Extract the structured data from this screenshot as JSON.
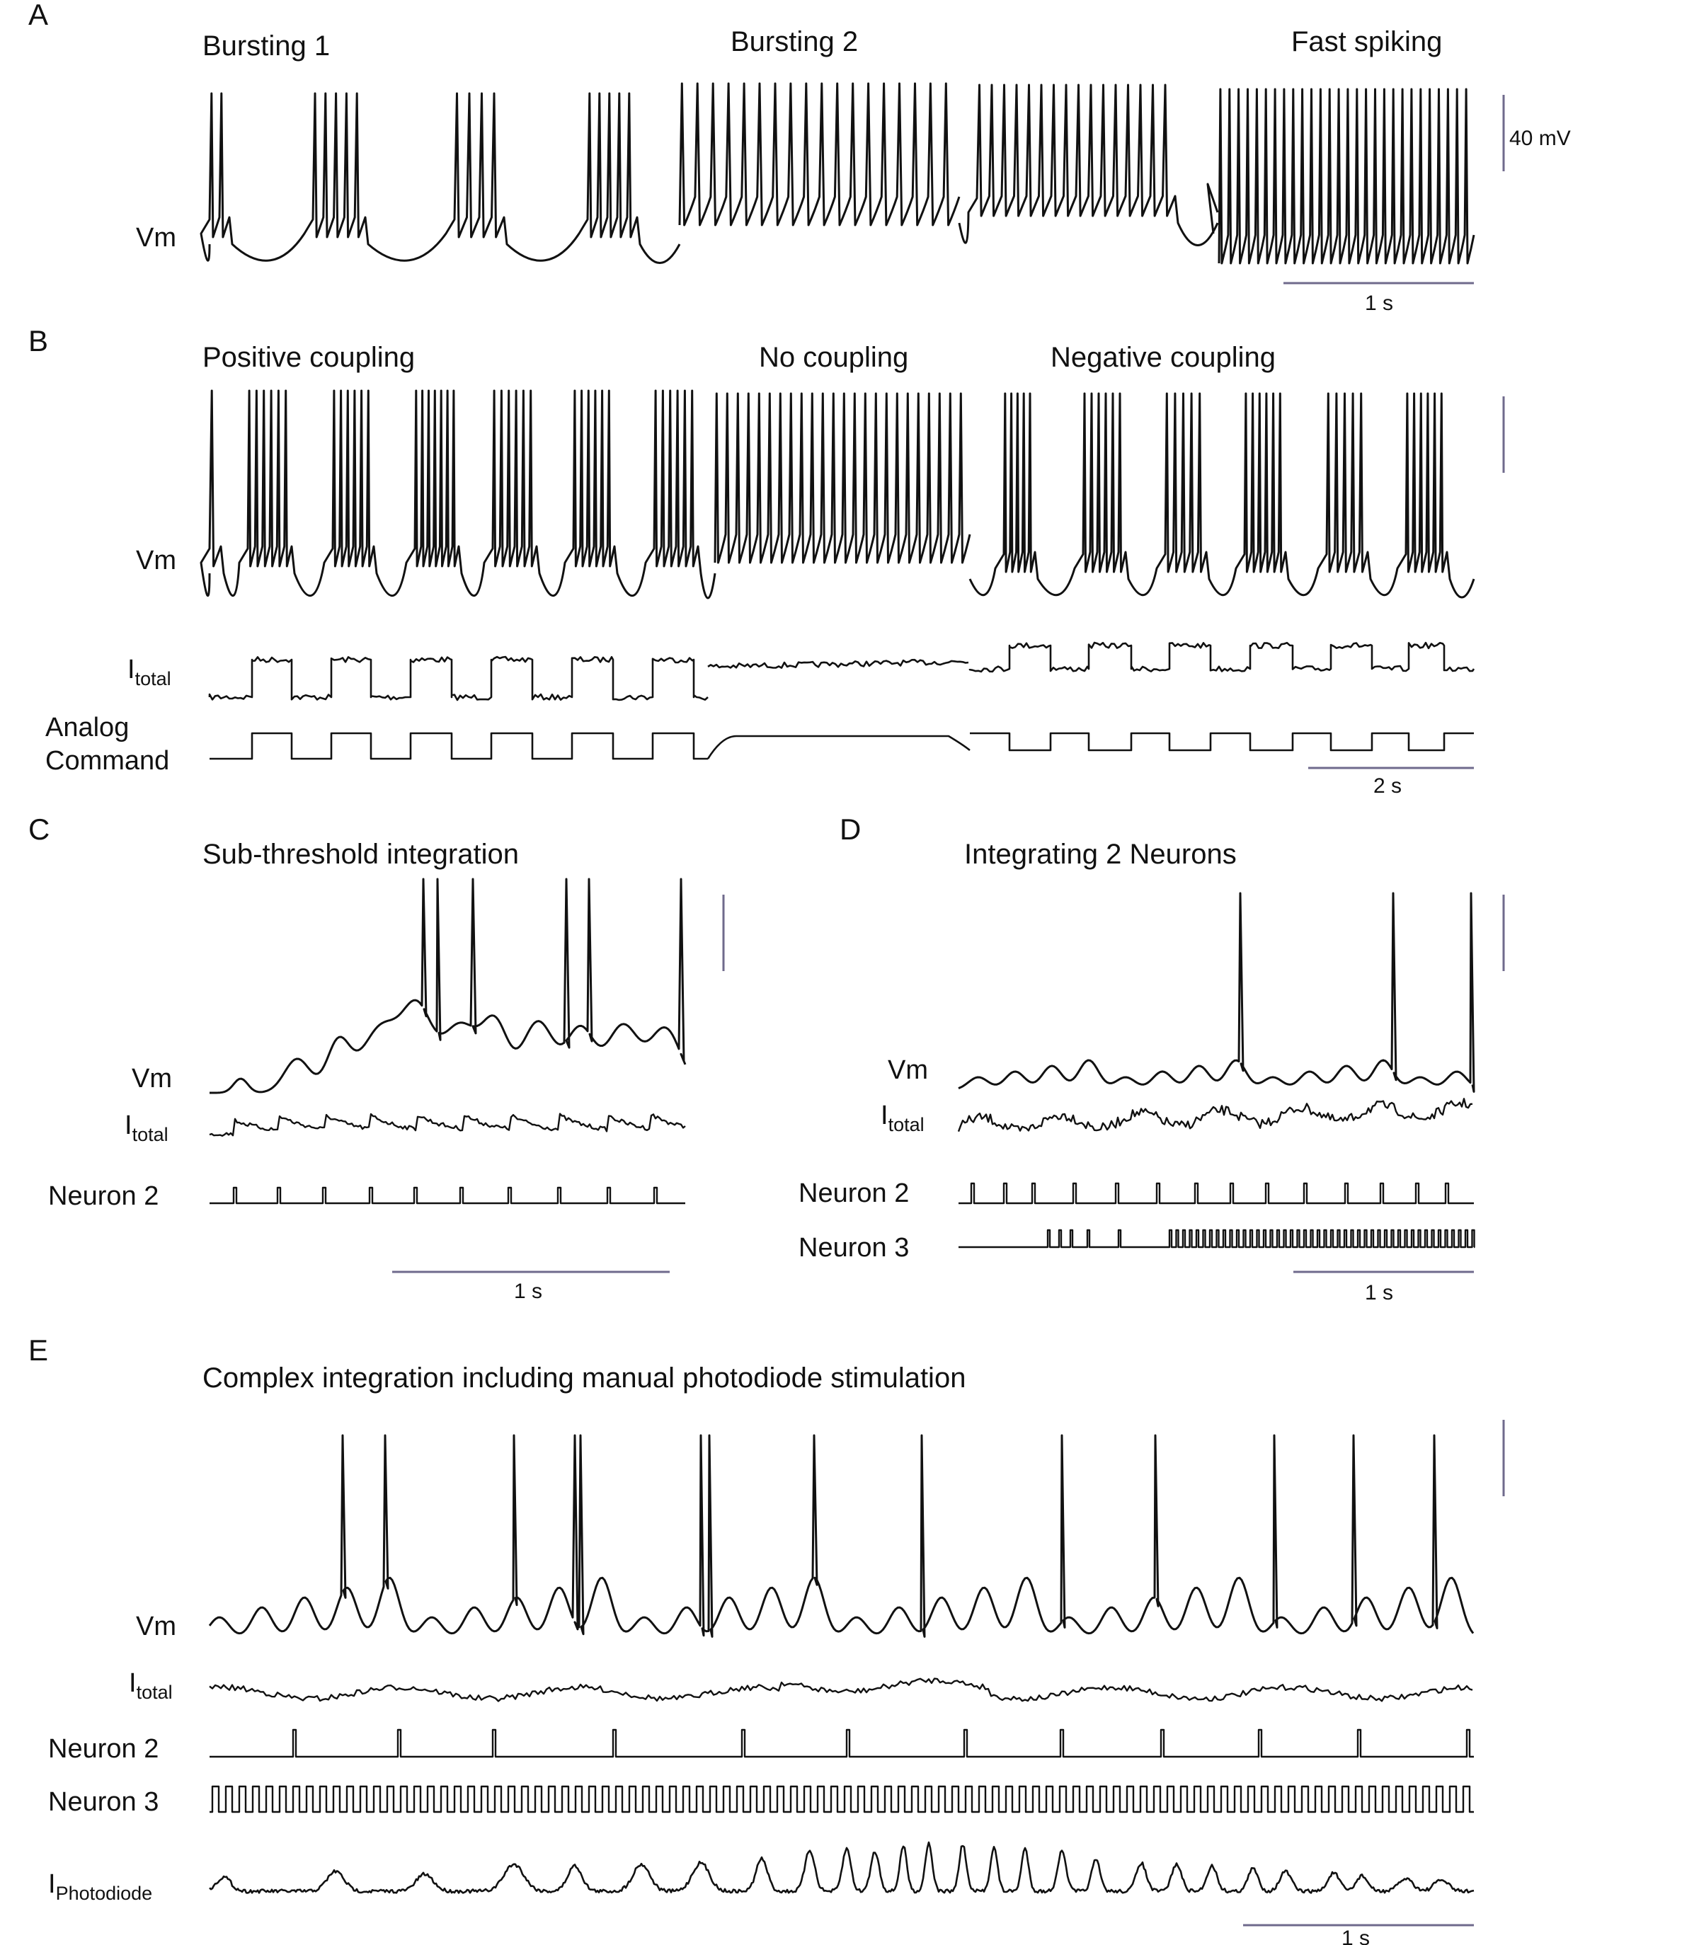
{
  "colors": {
    "trace": "#111111",
    "scalebar": "#6f6a8c",
    "background": "#ffffff"
  },
  "panels": {
    "A": {
      "letter": "A",
      "conditions": [
        "Bursting 1",
        "Bursting 2",
        "Fast spiking"
      ],
      "trace_labels": {
        "vm": "Vm"
      },
      "scale": {
        "vertical": "40 mV",
        "horizontal": "1 s"
      }
    },
    "B": {
      "letter": "B",
      "conditions": [
        "Positive coupling",
        "No coupling",
        "Negative coupling"
      ],
      "trace_labels": {
        "vm": "Vm",
        "itotal_main": "I",
        "itotal_sub": "total",
        "analog_line1": "Analog",
        "analog_line2": "Command"
      },
      "scale": {
        "horizontal": "2 s"
      }
    },
    "C": {
      "letter": "C",
      "title": "Sub-threshold integration",
      "trace_labels": {
        "vm": "Vm",
        "itotal_main": "I",
        "itotal_sub": "total",
        "neuron2": "Neuron 2"
      },
      "scale": {
        "horizontal": "1 s"
      }
    },
    "D": {
      "letter": "D",
      "title": "Integrating 2 Neurons",
      "trace_labels": {
        "vm": "Vm",
        "itotal_main": "I",
        "itotal_sub": "total",
        "neuron2": "Neuron 2",
        "neuron3": "Neuron 3"
      },
      "scale": {
        "horizontal": "1 s"
      }
    },
    "E": {
      "letter": "E",
      "title": "Complex integration including manual photodiode stimulation",
      "trace_labels": {
        "vm": "Vm",
        "itotal_main": "I",
        "itotal_sub": "total",
        "neuron2": "Neuron 2",
        "neuron3": "Neuron 3",
        "photo_main": "I",
        "photo_sub": "Photodiode"
      },
      "scale": {
        "horizontal": "1 s"
      }
    }
  }
}
